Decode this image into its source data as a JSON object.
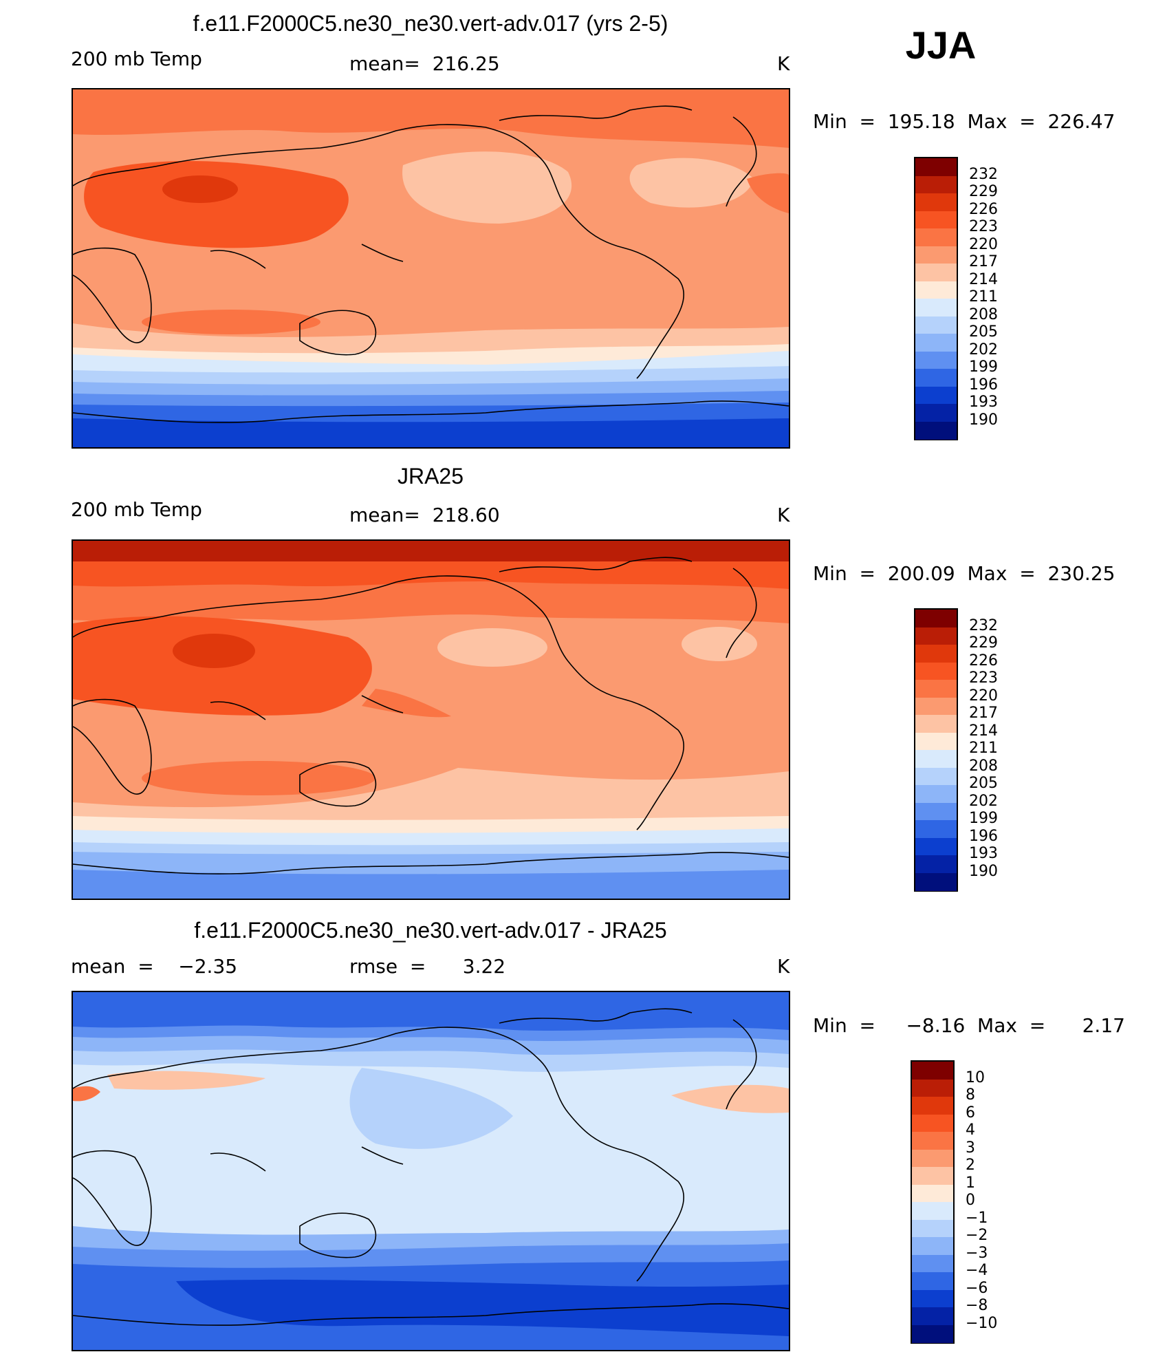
{
  "season": "JJA",
  "chart_data": [
    {
      "type": "heatmap",
      "title": "f.e11.F2000C5.ne30_ne30.vert-adv.017 (yrs 2-5)",
      "left_label": "200 mb Temp",
      "mean_label": "mean=  216.25",
      "mean": 216.25,
      "units": "K",
      "minmax_label": "Min  =  195.18  Max  =  226.47",
      "min": 195.18,
      "max": 226.47,
      "colorbar_ticks": [
        "232",
        "229",
        "226",
        "223",
        "220",
        "217",
        "214",
        "211",
        "208",
        "205",
        "202",
        "199",
        "196",
        "193",
        "190"
      ],
      "colorbar_colors": [
        "#7e0000",
        "#ba1e06",
        "#e0380c",
        "#f75422",
        "#fa7444",
        "#fb9a70",
        "#fdc3a4",
        "#feead8",
        "#d9eafc",
        "#b5d2fb",
        "#8db5f8",
        "#5f90f1",
        "#2f66e4",
        "#0c3fcf",
        "#0422a6",
        "#000f7c"
      ]
    },
    {
      "type": "heatmap",
      "title": "JRA25",
      "left_label": "200 mb Temp",
      "mean_label": "mean=  218.60",
      "mean": 218.6,
      "units": "K",
      "minmax_label": "Min  =  200.09  Max  =  230.25",
      "min": 200.09,
      "max": 230.25,
      "colorbar_ticks": [
        "232",
        "229",
        "226",
        "223",
        "220",
        "217",
        "214",
        "211",
        "208",
        "205",
        "202",
        "199",
        "196",
        "193",
        "190"
      ],
      "colorbar_colors": [
        "#7e0000",
        "#ba1e06",
        "#e0380c",
        "#f75422",
        "#fa7444",
        "#fb9a70",
        "#fdc3a4",
        "#feead8",
        "#d9eafc",
        "#b5d2fb",
        "#8db5f8",
        "#5f90f1",
        "#2f66e4",
        "#0c3fcf",
        "#0422a6",
        "#000f7c"
      ]
    },
    {
      "type": "heatmap",
      "title": "f.e11.F2000C5.ne30_ne30.vert-adv.017 - JRA25",
      "left_label": "mean  =    −2.35",
      "mean_label": "rmse  =      3.22",
      "mean": -2.35,
      "rmse": 3.22,
      "units": "K",
      "minmax_label": "Min  =     −8.16  Max  =      2.17",
      "min": -8.16,
      "max": 2.17,
      "colorbar_ticks": [
        "10",
        "8",
        "6",
        "4",
        "3",
        "2",
        "1",
        "0",
        "−1",
        "−2",
        "−3",
        "−4",
        "−6",
        "−8",
        "−10"
      ],
      "colorbar_colors": [
        "#7e0000",
        "#ba1e06",
        "#e0380c",
        "#f75422",
        "#fa7444",
        "#fb9a70",
        "#fdc3a4",
        "#feead8",
        "#d9eafc",
        "#b5d2fb",
        "#8db5f8",
        "#5f90f1",
        "#2f66e4",
        "#0c3fcf",
        "#0422a6",
        "#000f7c"
      ]
    }
  ]
}
